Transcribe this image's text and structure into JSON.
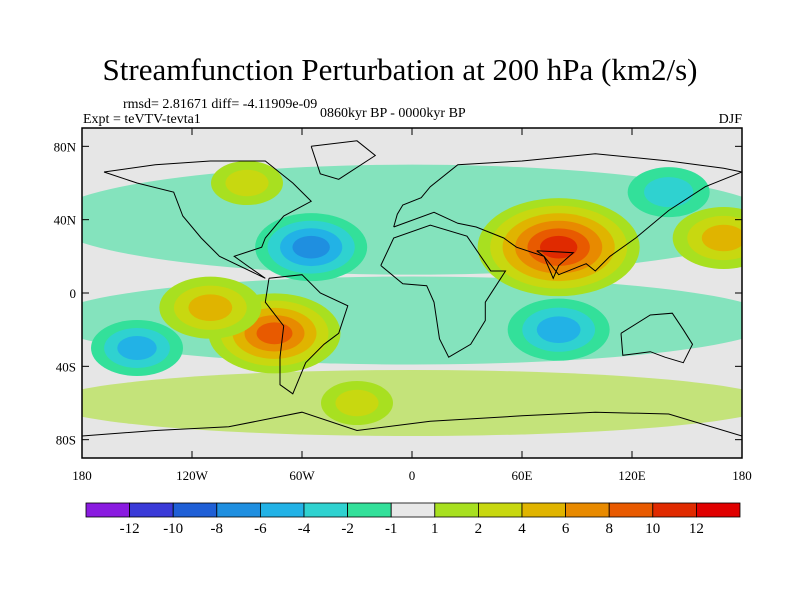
{
  "chart_data": {
    "type": "heatmap",
    "title": "Streamfunction Perturbation at 200 hPa (km2/s)",
    "subtitle_left_top": "rmsd= 2.81671 diff= -4.11909e-09",
    "subtitle_left": "Expt = teVTV-tevta1",
    "subtitle_center": "0860kyr BP - 0000kyr BP",
    "subtitle_right": "DJF",
    "xlim": [
      -180,
      180
    ],
    "ylim": [
      -90,
      90
    ],
    "x_ticks": [
      {
        "value": -180,
        "label": "180"
      },
      {
        "value": -120,
        "label": "120W"
      },
      {
        "value": -60,
        "label": "60W"
      },
      {
        "value": 0,
        "label": "0"
      },
      {
        "value": 60,
        "label": "60E"
      },
      {
        "value": 120,
        "label": "120E"
      },
      {
        "value": 180,
        "label": "180"
      }
    ],
    "y_ticks": [
      {
        "value": 80,
        "label": "80N"
      },
      {
        "value": 40,
        "label": "40N"
      },
      {
        "value": 0,
        "label": "0"
      },
      {
        "value": -40,
        "label": "40S"
      },
      {
        "value": -80,
        "label": "80S"
      }
    ],
    "colorbar": {
      "labels": [
        "-12",
        "-10",
        "-8",
        "-6",
        "-4",
        "-2",
        "-1",
        "1",
        "2",
        "4",
        "6",
        "8",
        "10",
        "12"
      ],
      "colors": [
        "#8a1be0",
        "#3a3ad8",
        "#1f5fd6",
        "#1f8fe0",
        "#22b2e6",
        "#2fd2d0",
        "#33e09a",
        "#e8e8e8",
        "#a8e020",
        "#c8d810",
        "#e0b400",
        "#e88a00",
        "#e85a00",
        "#e02a00",
        "#e00000"
      ]
    },
    "features": [
      {
        "name": "asia-high",
        "lon": 80,
        "lat": 25,
        "value": 11
      },
      {
        "name": "south-america-high",
        "lon": -75,
        "lat": -22,
        "value": 8
      },
      {
        "name": "east-pacific-high",
        "lon": -110,
        "lat": -8,
        "value": 5
      },
      {
        "name": "west-pacific-high",
        "lon": 170,
        "lat": 30,
        "value": 5
      },
      {
        "name": "north-atlantic-low",
        "lon": -55,
        "lat": 25,
        "value": -6
      },
      {
        "name": "indian-ocean-low",
        "lon": 80,
        "lat": -20,
        "value": -5
      },
      {
        "name": "south-pacific-low",
        "lon": -150,
        "lat": -30,
        "value": -4
      },
      {
        "name": "north-pacific-low",
        "lon": 140,
        "lat": 55,
        "value": -3
      },
      {
        "name": "north-america-high",
        "lon": -90,
        "lat": 60,
        "value": 2
      },
      {
        "name": "southern-ocean-high",
        "lon": -30,
        "lat": -60,
        "value": 2
      }
    ]
  }
}
